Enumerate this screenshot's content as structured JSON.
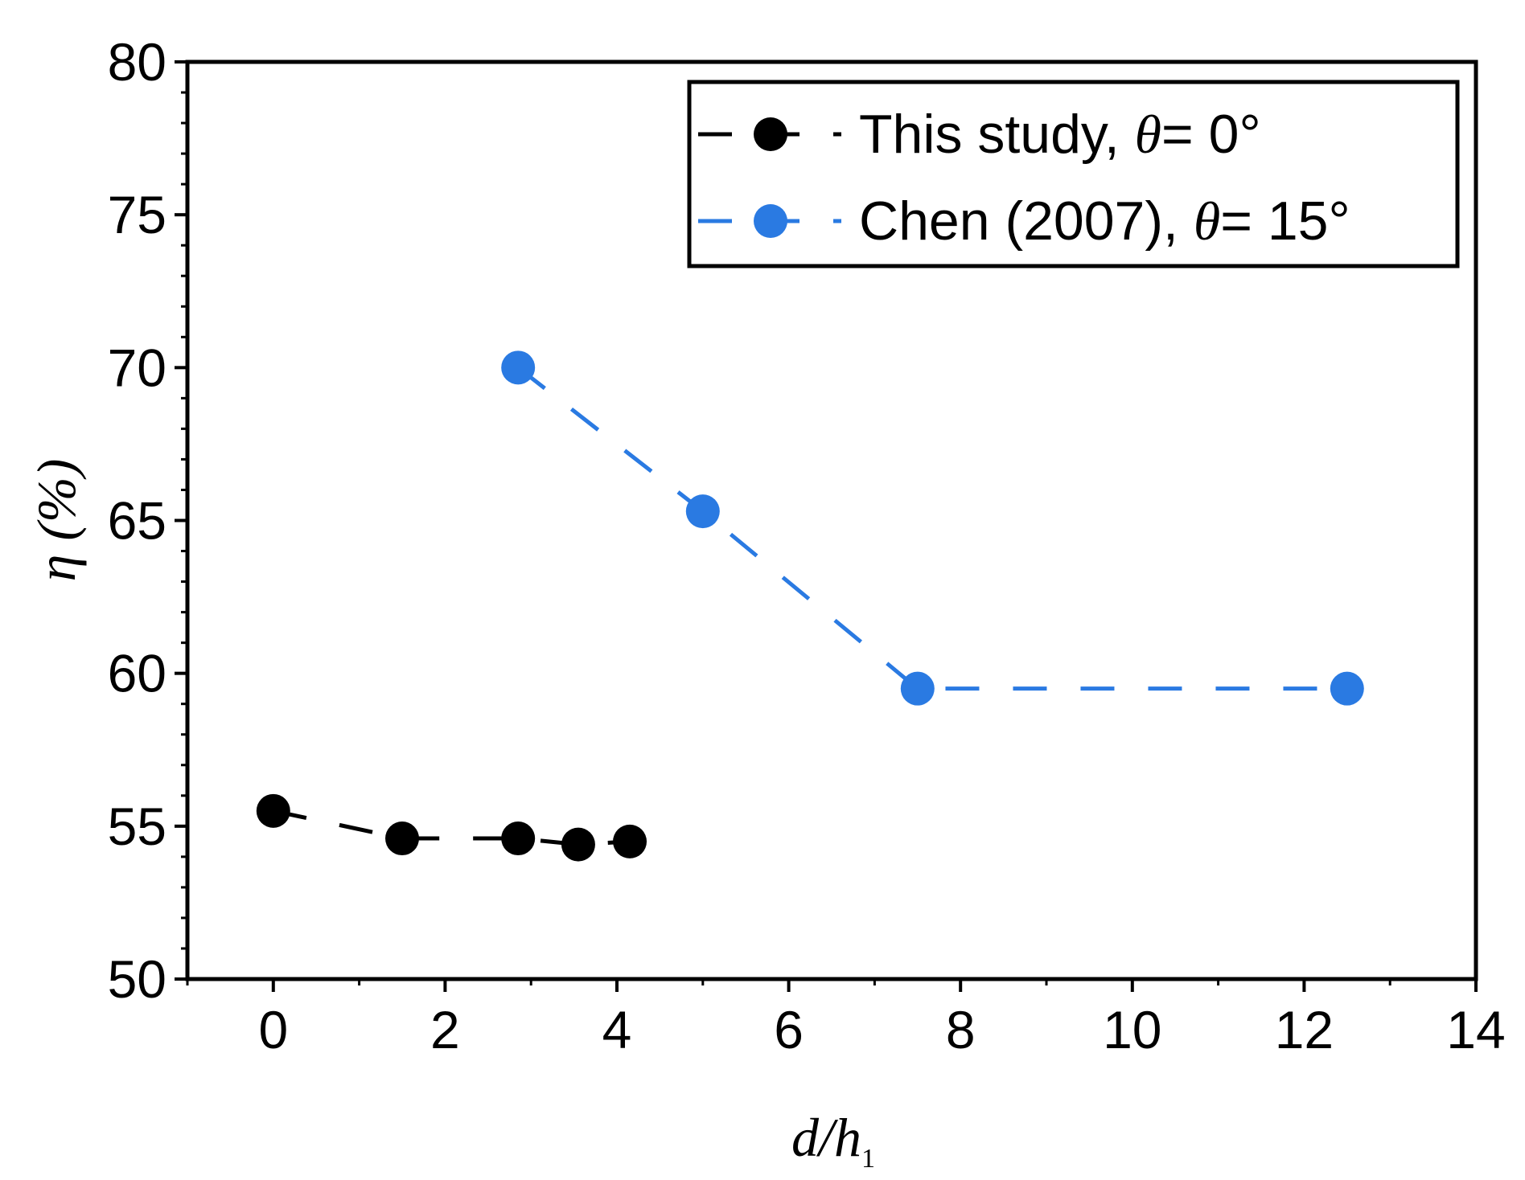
{
  "chart_data": {
    "type": "line",
    "title": "",
    "xlabel": "d/h",
    "xlabel_subscript": "1",
    "ylabel": "η (%)",
    "xlim": [
      -1,
      14
    ],
    "ylim": [
      50,
      80
    ],
    "xticks": [
      0,
      2,
      4,
      6,
      8,
      10,
      12,
      14
    ],
    "yticks": [
      50,
      55,
      60,
      65,
      70,
      75,
      80
    ],
    "grid": false,
    "legend_position": "top-right",
    "series": [
      {
        "name": "This study, θ = 0°",
        "name_prefix": "This study, ",
        "name_theta": "θ",
        "name_suffix": "= 0°",
        "color": "#000000",
        "line_style": "dashed",
        "marker": "circle",
        "x": [
          0,
          1.5,
          2.85,
          3.55,
          4.15
        ],
        "y": [
          55.5,
          54.6,
          54.6,
          54.4,
          54.5
        ]
      },
      {
        "name": "Chen (2007), θ = 15°",
        "name_prefix": "Chen (2007), ",
        "name_theta": "θ",
        "name_suffix": "= 15°",
        "color": "#2a7ae2",
        "line_style": "dashed",
        "marker": "circle",
        "x": [
          2.85,
          5.0,
          7.5,
          12.5
        ],
        "y": [
          70.0,
          65.3,
          59.5,
          59.5
        ]
      }
    ]
  }
}
